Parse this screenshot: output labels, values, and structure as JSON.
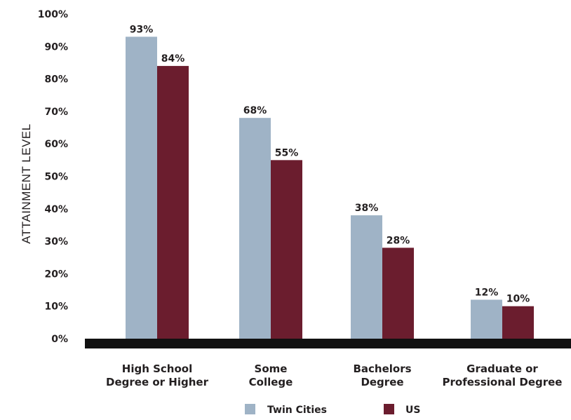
{
  "chart_data": {
    "type": "bar",
    "categories": [
      [
        "High School",
        "Degree or Higher"
      ],
      [
        "Some",
        "College"
      ],
      [
        "Bachelors",
        "Degree"
      ],
      [
        "Graduate or",
        "Professional Degree"
      ]
    ],
    "series": [
      {
        "name": "Twin Cities",
        "values": [
          93,
          68,
          38,
          12
        ],
        "labels": [
          "93%",
          "68%",
          "38%",
          "12%"
        ],
        "color": "#9fb3c6"
      },
      {
        "name": "US",
        "values": [
          84,
          55,
          28,
          10
        ],
        "labels": [
          "84%",
          "55%",
          "28%",
          "10%"
        ],
        "color": "#6b1d2e"
      }
    ],
    "ylabel": "ATTAINMENT LEVEL",
    "xlabel": "",
    "ylim": [
      0,
      100
    ],
    "yticks": [
      0,
      10,
      20,
      30,
      40,
      50,
      60,
      70,
      80,
      90,
      100
    ],
    "ytick_labels": [
      "0%",
      "10%",
      "20%",
      "30%",
      "40%",
      "50%",
      "60%",
      "70%",
      "80%",
      "90%",
      "100%"
    ],
    "grid": false,
    "legend": "bottom-center",
    "axis_color": "#111111"
  }
}
